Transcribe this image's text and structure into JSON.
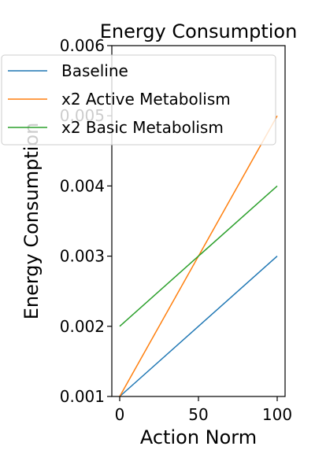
{
  "chart_data": {
    "type": "line",
    "title": "Energy Consumption",
    "xlabel": "Action Norm",
    "ylabel": "Energy Consumption",
    "xlim": [
      -5,
      105
    ],
    "ylim": [
      0.001,
      0.006
    ],
    "xticks": [
      0,
      50,
      100
    ],
    "xtick_labels": [
      "0",
      "50",
      "100"
    ],
    "yticks": [
      0.001,
      0.002,
      0.003,
      0.004,
      0.005,
      0.006
    ],
    "ytick_labels": [
      "0.001",
      "0.002",
      "0.003",
      "0.004",
      "0.005",
      "0.006"
    ],
    "grid": false,
    "legend_position": "upper-left",
    "x": [
      0,
      100
    ],
    "series": [
      {
        "name": "Baseline",
        "values": [
          0.001,
          0.003
        ],
        "color": "#1f77b4"
      },
      {
        "name": "x2 Active Metabolism",
        "values": [
          0.001,
          0.005
        ],
        "color": "#ff7f0e"
      },
      {
        "name": "x2 Basic Metabolism",
        "values": [
          0.002,
          0.004
        ],
        "color": "#2ca02c"
      }
    ]
  }
}
